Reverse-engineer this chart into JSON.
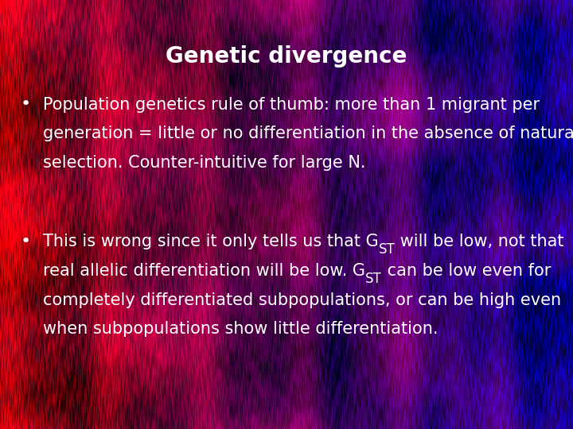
{
  "title": "Genetic divergence",
  "title_fontsize": 20,
  "title_color": "#ffffff",
  "bullet1_lines": [
    "Population genetics rule of thumb: more than 1 migrant per",
    "generation = little or no differentiation in the absence of natural",
    "selection. Counter-intuitive for large N."
  ],
  "bullet2_line1_before": "This is wrong since it only tells us that G",
  "bullet2_line1_sub": "ST",
  "bullet2_line1_after": " will be low, not that",
  "bullet2_line2_before": "real allelic differentiation will be low. G",
  "bullet2_line2_sub": "ST",
  "bullet2_line2_after": " can be low even for",
  "bullet2_line3": "completely differentiated subpopulations, or can be high even",
  "bullet2_line4": "when subpopulations show little differentiation.",
  "text_color": "#ffffff",
  "text_fontsize": 15,
  "figsize": [
    7.2,
    5.4
  ],
  "dpi": 100
}
